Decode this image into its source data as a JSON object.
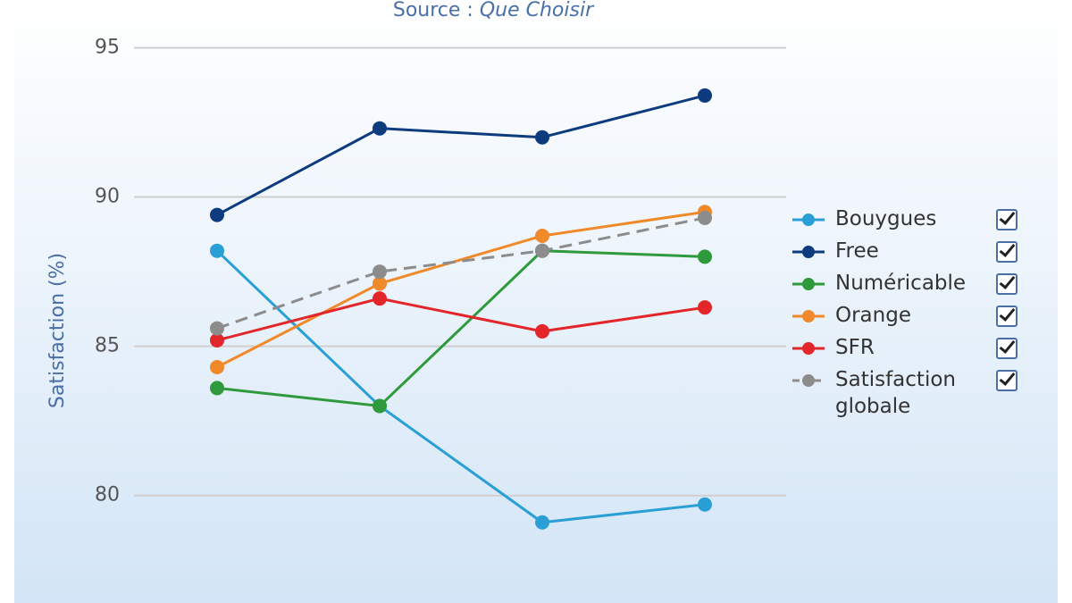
{
  "chart_data": {
    "type": "line",
    "subtitle_label": "Source :",
    "subtitle_source": "Que Choisir",
    "y_label": "Satisfaction (%)",
    "categories": [
      null,
      null,
      null,
      null
    ],
    "series": [
      {
        "name": "Bouygues",
        "color": "#2a9fd6",
        "values": [
          88.2,
          83.0,
          79.1,
          79.7
        ]
      },
      {
        "name": "Free",
        "color": "#0d3b7e",
        "values": [
          89.4,
          92.3,
          92.0,
          93.4
        ]
      },
      {
        "name": "Numéricable",
        "color": "#2e9a3c",
        "values": [
          83.6,
          83.0,
          88.2,
          88.0
        ]
      },
      {
        "name": "Orange",
        "color": "#f0892a",
        "values": [
          84.3,
          87.1,
          88.7,
          89.5
        ]
      },
      {
        "name": "SFR",
        "color": "#e3262a",
        "values": [
          85.2,
          86.6,
          85.5,
          86.3
        ]
      },
      {
        "name": "Satisfaction globale",
        "color": "#8c8c8c",
        "dashed": true,
        "values": [
          85.6,
          87.5,
          88.2,
          89.3
        ]
      }
    ],
    "ylim": [
      76.4,
      96.6
    ],
    "yticks": [
      80,
      85,
      90,
      95
    ],
    "grid": true,
    "legend": "right"
  }
}
